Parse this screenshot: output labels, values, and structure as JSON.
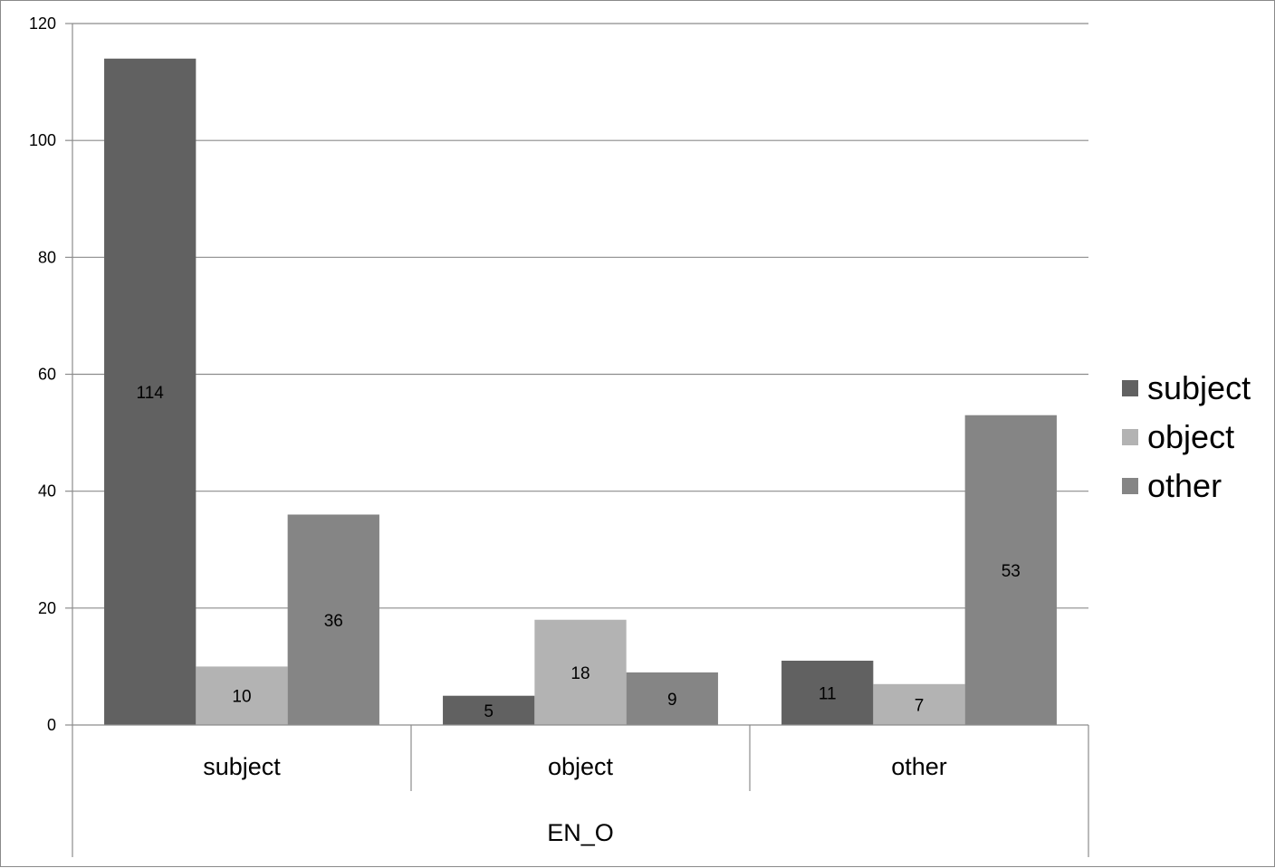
{
  "chart_data": {
    "type": "bar",
    "categories": [
      "subject",
      "object",
      "other"
    ],
    "group_label": "EN_O",
    "series": [
      {
        "name": "subject",
        "values": [
          114,
          5,
          11
        ],
        "color": "#616161"
      },
      {
        "name": "object",
        "values": [
          10,
          18,
          7
        ],
        "color": "#b3b3b3"
      },
      {
        "name": "other",
        "values": [
          36,
          9,
          53
        ],
        "color": "#858585"
      }
    ],
    "ylim": [
      0,
      120
    ],
    "yticks": [
      0,
      20,
      40,
      60,
      80,
      100,
      120
    ],
    "grid": true,
    "data_labels": true,
    "legend_position": "right"
  }
}
